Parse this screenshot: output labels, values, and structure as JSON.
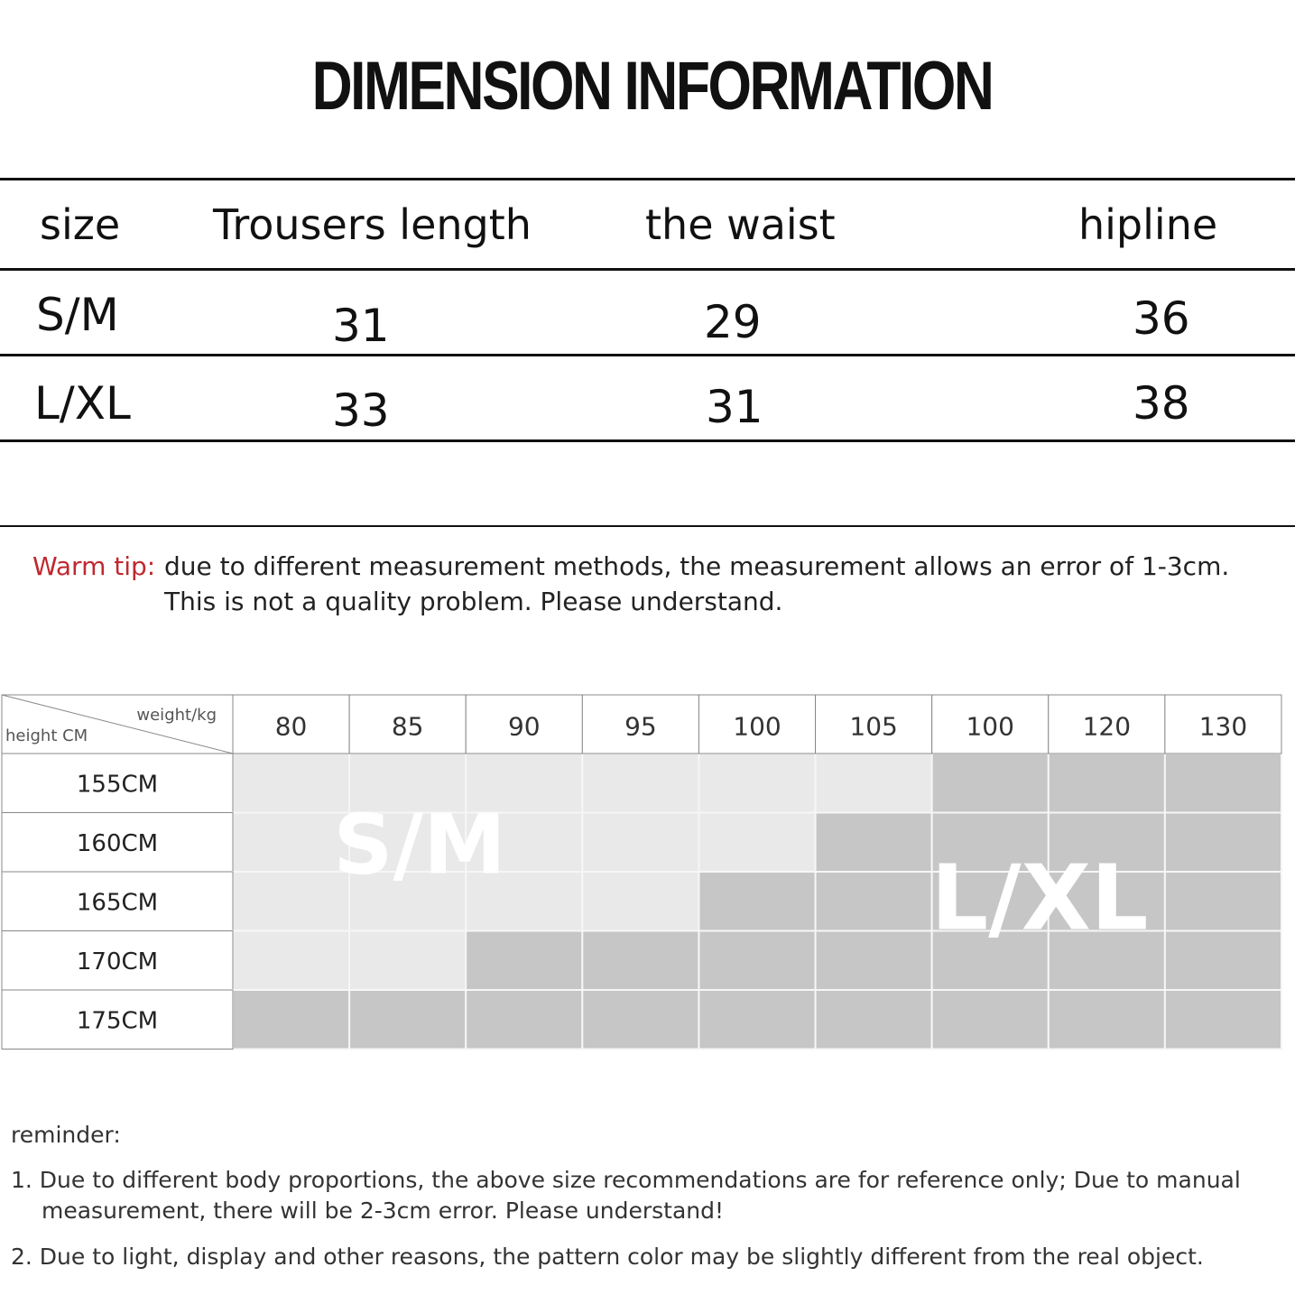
{
  "title": "DIMENSION INFORMATION",
  "size_table": {
    "headers": [
      "size",
      "Trousers length",
      "the waist",
      "hipline"
    ],
    "rows": [
      [
        "S/M",
        "31",
        "29",
        "36"
      ],
      [
        "L/XL",
        "33",
        "31",
        "38"
      ]
    ]
  },
  "warm_tip": {
    "label": "Warm tip:",
    "lines": [
      "due to different measurement methods, the measurement allows an error of 1-3cm.",
      "This is not a quality problem. Please understand."
    ]
  },
  "size_chart": {
    "corner_top": "weight/kg",
    "corner_bottom": "height CM",
    "columns": [
      "80",
      "85",
      "90",
      "95",
      "100",
      "105",
      "100",
      "120",
      "130"
    ],
    "rows": [
      {
        "label": "155CM",
        "sm_columns": 6
      },
      {
        "label": "160CM",
        "sm_columns": 5
      },
      {
        "label": "165CM",
        "sm_columns": 4
      },
      {
        "label": "170CM",
        "sm_columns": 2
      },
      {
        "label": "175CM",
        "sm_columns": 0
      }
    ],
    "zone_labels": [
      "S/M",
      "L/XL"
    ]
  },
  "reminder": {
    "title": "reminder:",
    "items": [
      "1. Due to different body proportions, the above size recommendations are for reference only; Due to manual measurement, there will be 2-3cm error. Please understand!",
      "2. Due to light, display and other reasons, the pattern color may be slightly different from the real object."
    ]
  }
}
